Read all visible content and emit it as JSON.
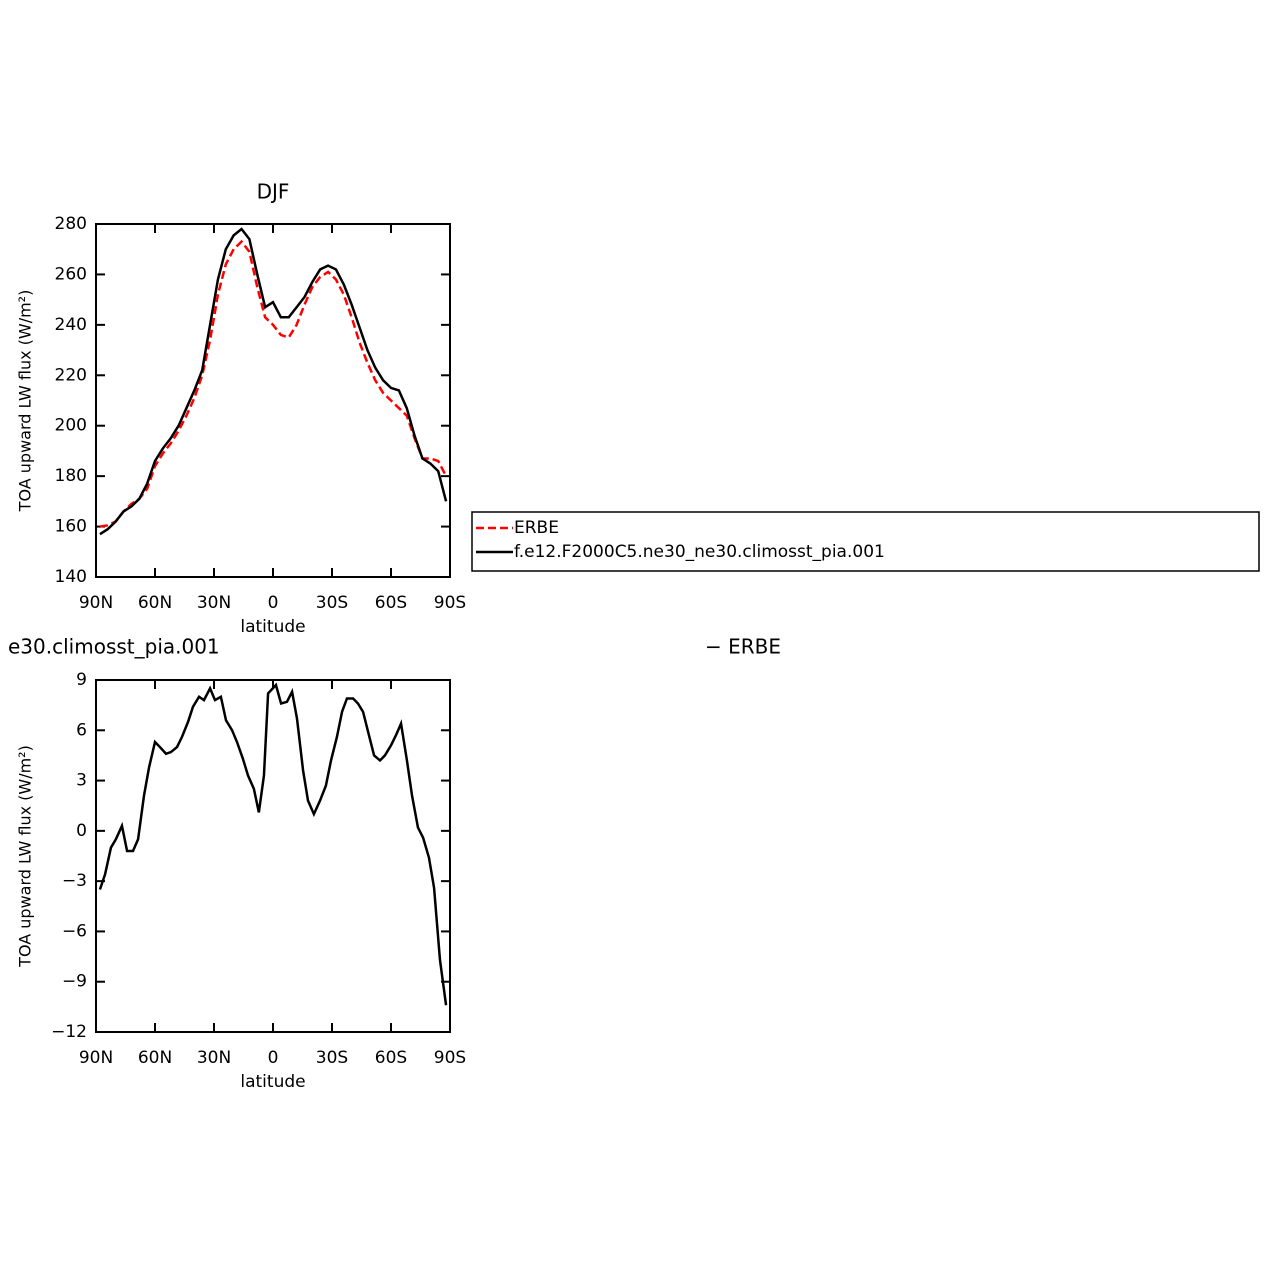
{
  "chart_data": [
    {
      "type": "line",
      "title": "DJF",
      "xlabel": "latitude",
      "ylabel": "TOA upward LW flux (W/m²)",
      "x": [
        88,
        84,
        80,
        76,
        72,
        68,
        64,
        60,
        56,
        52,
        48,
        44,
        40,
        36,
        32,
        28,
        24,
        20,
        16,
        12,
        8,
        4,
        0,
        -4,
        -8,
        -12,
        -16,
        -20,
        -24,
        -28,
        -32,
        -36,
        -40,
        -44,
        -48,
        -52,
        -56,
        -60,
        -64,
        -68,
        -72,
        -76,
        -80,
        -84,
        -88
      ],
      "series": [
        {
          "name": "ERBE",
          "color": "#ff0000",
          "dash": true,
          "values": [
            160,
            160.5,
            162,
            166,
            169,
            171,
            175,
            184,
            189,
            193,
            198,
            204,
            211,
            220,
            234,
            252,
            264,
            270,
            273,
            269,
            255,
            243,
            240,
            236,
            235,
            240,
            248,
            255,
            259,
            261,
            258,
            252,
            243,
            233,
            225,
            218,
            213,
            210,
            207,
            204,
            195,
            187,
            187,
            186,
            180
          ]
        },
        {
          "name": "f.e12.F2000C5.ne30_ne30.climosst_pia.001",
          "color": "#000000",
          "dash": false,
          "values": [
            157,
            159,
            162,
            166,
            168,
            171,
            177,
            186,
            191,
            195,
            200,
            207,
            214,
            222,
            240,
            258,
            270,
            275.5,
            278,
            274,
            260,
            247,
            249,
            243,
            243,
            247,
            251,
            257,
            262,
            263.5,
            262,
            256,
            248,
            239,
            230,
            223,
            218,
            215,
            214,
            207,
            196,
            187,
            185,
            182,
            170
          ]
        }
      ],
      "xlim": [
        90,
        -90
      ],
      "xticks": [
        {
          "value": 90,
          "label": "90N"
        },
        {
          "value": 60,
          "label": "60N"
        },
        {
          "value": 30,
          "label": "30N"
        },
        0,
        {
          "value": -30,
          "label": "30S"
        },
        {
          "value": -60,
          "label": "60S"
        },
        {
          "value": -90,
          "label": "90S"
        }
      ],
      "ylim": [
        140,
        280
      ],
      "yticks": [
        140,
        160,
        180,
        200,
        220,
        240,
        260,
        280
      ],
      "legend": "right"
    },
    {
      "type": "line",
      "title": "e30.climosst_pia.001",
      "title_right": "− ERBE",
      "xlabel": "latitude",
      "ylabel": "TOA upward LW flux (W/m²)",
      "x": [
        88,
        85.4,
        82.4,
        79.9,
        76.8,
        74.2,
        71.2,
        68.6,
        65.6,
        63,
        60,
        57.5,
        54.4,
        51.9,
        48.8,
        46.3,
        43.2,
        40.7,
        37.6,
        35.1,
        32,
        29.5,
        26.5,
        23.9,
        20.8,
        18.3,
        15.3,
        12.7,
        9.7,
        7.2,
        4.6,
        2.5,
        -1.5,
        -4.1,
        -7.1,
        -9.7,
        -12.2,
        -15.3,
        -17.8,
        -20.8,
        -23.9,
        -26.9,
        -29.5,
        -32.5,
        -35.1,
        -37.6,
        -40.7,
        -43.2,
        -45.8,
        -48.8,
        -51.4,
        -54.4,
        -56.9,
        -60,
        -62.5,
        -65.1,
        -68.1,
        -70.7,
        -73.7,
        -76.3,
        -79.3,
        -81.9,
        -84.9,
        -88
      ],
      "series": [
        {
          "color": "#000000",
          "dash": false,
          "values": [
            -3.5,
            -2.6,
            -1,
            -0.5,
            0.3,
            -1.2,
            -1.2,
            -0.5,
            2.1,
            3.8,
            5.3,
            5,
            4.6,
            4.7,
            5,
            5.6,
            6.5,
            7.4,
            8,
            7.8,
            8.5,
            7.8,
            8,
            6.6,
            6,
            5.3,
            4.3,
            3.3,
            2.5,
            1.1,
            3.3,
            8.2,
            8.7,
            7.6,
            7.7,
            8.3,
            6.7,
            3.6,
            1.8,
            1,
            1.8,
            2.7,
            4.2,
            5.6,
            7.1,
            7.9,
            7.9,
            7.6,
            7.1,
            5.7,
            4.5,
            4.2,
            4.5,
            5.1,
            5.7,
            6.4,
            4.2,
            2.1,
            0.2,
            -0.4,
            -1.6,
            -3.4,
            -7.7,
            -10.4
          ]
        }
      ],
      "xlim": [
        90,
        -90
      ],
      "xticks": [
        {
          "value": 90,
          "label": "90N"
        },
        {
          "value": 60,
          "label": "60N"
        },
        {
          "value": 30,
          "label": "30N"
        },
        0,
        {
          "value": -30,
          "label": "30S"
        },
        {
          "value": -60,
          "label": "60S"
        },
        {
          "value": -90,
          "label": "90S"
        }
      ],
      "ylim": [
        -12,
        9
      ],
      "yticks": [
        {
          "value": -12,
          "label": "−12"
        },
        {
          "value": -9,
          "label": "−9"
        },
        {
          "value": -6,
          "label": "−6"
        },
        {
          "value": -3,
          "label": "−3"
        },
        0,
        3,
        6,
        9
      ]
    }
  ]
}
